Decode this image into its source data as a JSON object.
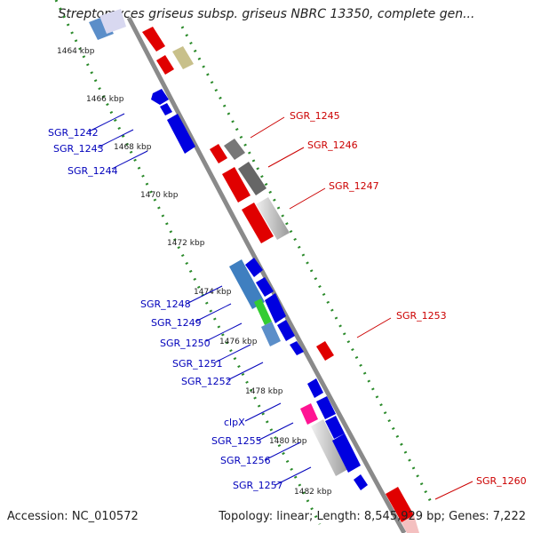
{
  "title": "Streptomyces griseus subsp. griseus NBRC 13350, complete gen...",
  "footer": {
    "accession": "Accession: NC_010572",
    "summary": "Topology: linear; Length: 8,545,929 bp; Genes: 7,222"
  },
  "colors": {
    "plus_strand_gene": "#e00000",
    "minus_strand_gene": "#0000e0",
    "backbone": "#8a8a8a",
    "scale_dots": "#2a8a2a",
    "label_plus": "#cc0000",
    "label_minus": "#0000bb"
  },
  "ticks": [
    "1464 kbp",
    "1466 kbp",
    "1468 kbp",
    "1470 kbp",
    "1472 kbp",
    "1474 kbp",
    "1476 kbp",
    "1478 kbp",
    "1480 kbp",
    "1482 kbp"
  ],
  "genes_right": [
    "SGR_1245",
    "SGR_1246",
    "SGR_1247",
    "SGR_1253",
    "SGR_1260"
  ],
  "genes_left": [
    "SGR_1242",
    "SGR_1243",
    "SGR_1244",
    "SGR_1248",
    "SGR_1249",
    "SGR_1250",
    "SGR_1251",
    "SGR_1252",
    "clpX",
    "SGR_1255",
    "SGR_1256",
    "SGR_1257"
  ]
}
